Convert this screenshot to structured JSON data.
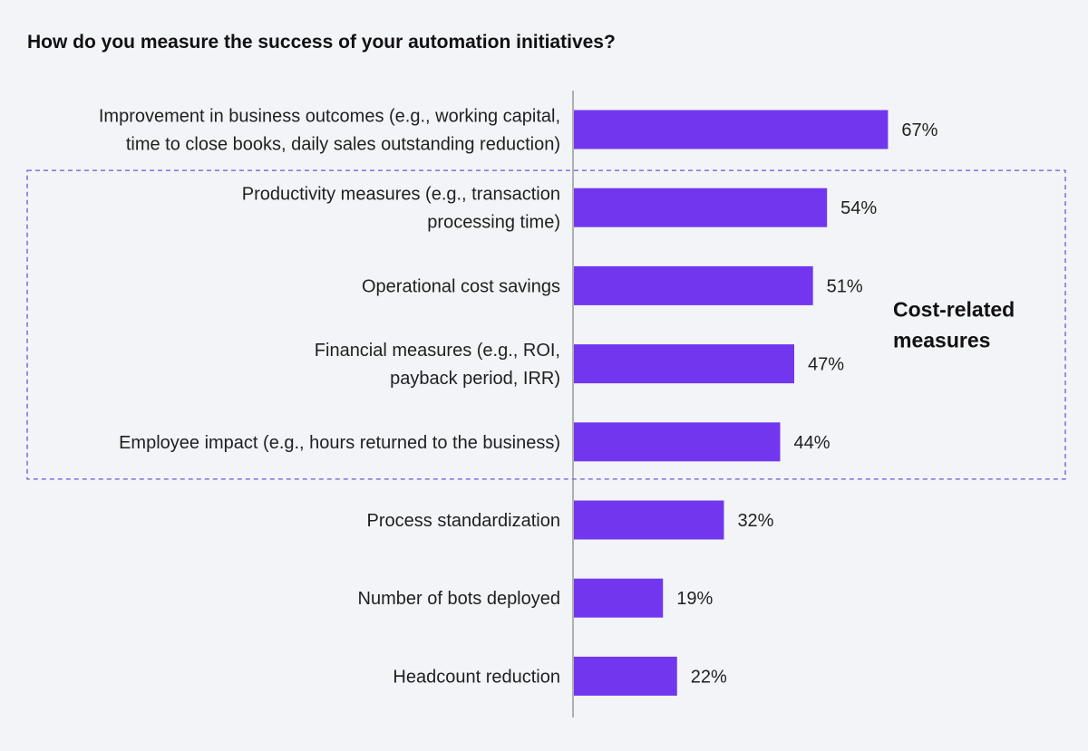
{
  "chart_data": {
    "type": "bar",
    "orientation": "horizontal",
    "title": "How do you measure the success of your automation initiatives?",
    "categories": [
      [
        "Improvement in business outcomes (e.g., working capital,",
        "time to close books, daily sales outstanding reduction)"
      ],
      [
        "Productivity measures (e.g., transaction",
        "processing time)"
      ],
      [
        "Operational cost savings"
      ],
      [
        "Financial measures (e.g., ROI,",
        "payback period, IRR)"
      ],
      [
        "Employee impact (e.g., hours returned to the business)"
      ],
      [
        "Process standardization"
      ],
      [
        "Number of bots deployed"
      ],
      [
        "Headcount reduction"
      ]
    ],
    "values": [
      67,
      54,
      51,
      47,
      44,
      32,
      19,
      22
    ],
    "value_labels": [
      "67%",
      "54%",
      "51%",
      "47%",
      "44%",
      "32%",
      "19%",
      "22%"
    ],
    "unit": "%",
    "bar_color": "#7236ef",
    "grid": false,
    "legend": "none",
    "annotation": {
      "text_lines": [
        "Cost-related",
        "measures"
      ],
      "style": "dashed box",
      "color": "#6f55d8",
      "spans_categories": [
        1,
        4
      ]
    }
  }
}
